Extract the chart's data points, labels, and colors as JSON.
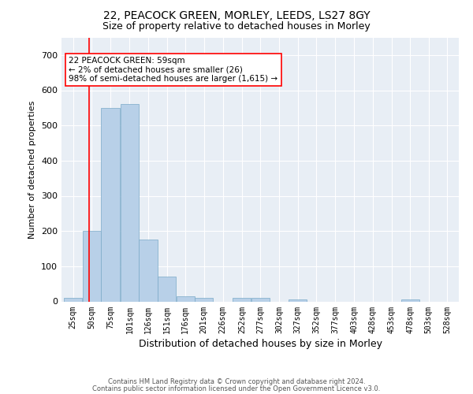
{
  "title1": "22, PEACOCK GREEN, MORLEY, LEEDS, LS27 8GY",
  "title2": "Size of property relative to detached houses in Morley",
  "xlabel": "Distribution of detached houses by size in Morley",
  "ylabel": "Number of detached properties",
  "bar_color": "#b8d0e8",
  "bar_edge_color": "#7aaac8",
  "bg_color": "#e8eef5",
  "annotation_text": "22 PEACOCK GREEN: 59sqm\n← 2% of detached houses are smaller (26)\n98% of semi-detached houses are larger (1,615) →",
  "annotation_box_color": "white",
  "annotation_box_edge": "red",
  "vline_x": 59,
  "vline_color": "red",
  "footer1": "Contains HM Land Registry data © Crown copyright and database right 2024.",
  "footer2": "Contains public sector information licensed under the Open Government Licence v3.0.",
  "categories": [
    "25sqm",
    "50sqm",
    "75sqm",
    "101sqm",
    "126sqm",
    "151sqm",
    "176sqm",
    "201sqm",
    "226sqm",
    "252sqm",
    "277sqm",
    "302sqm",
    "327sqm",
    "352sqm",
    "377sqm",
    "403sqm",
    "428sqm",
    "453sqm",
    "478sqm",
    "503sqm",
    "528sqm"
  ],
  "bin_edges": [
    25,
    50,
    75,
    101,
    126,
    151,
    176,
    201,
    226,
    252,
    277,
    302,
    327,
    352,
    377,
    403,
    428,
    453,
    478,
    503,
    528,
    553
  ],
  "values": [
    10,
    200,
    550,
    560,
    175,
    70,
    15,
    10,
    0,
    10,
    10,
    0,
    5,
    0,
    0,
    0,
    0,
    0,
    5,
    0,
    0
  ],
  "ylim": [
    0,
    750
  ],
  "yticks": [
    0,
    100,
    200,
    300,
    400,
    500,
    600,
    700
  ],
  "grid_color": "white",
  "title1_fontsize": 10,
  "title2_fontsize": 9,
  "annotation_fontsize": 7.5,
  "ylabel_fontsize": 8,
  "xlabel_fontsize": 9,
  "tick_fontsize": 7
}
